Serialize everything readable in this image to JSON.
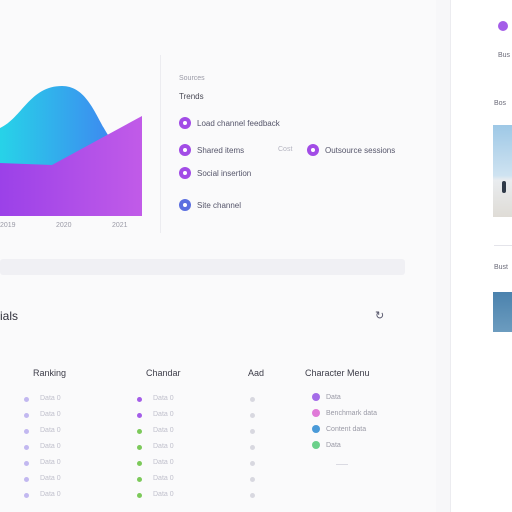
{
  "chart": {
    "tick_labels": [
      "2019",
      "2020",
      "2021"
    ]
  },
  "legend": {
    "kicker": "Sources",
    "title": "Trends",
    "items": [
      {
        "label": "Load channel feedback",
        "color": "#a24ce6"
      },
      {
        "label": "Shared items",
        "color": "#a24ce6"
      },
      {
        "label": "Social insertion",
        "color": "#a24ce6"
      },
      {
        "label": "Outsource sessions",
        "color": "#a24ce6"
      },
      {
        "label": "Site channel",
        "color": "#5b6fe0"
      }
    ],
    "mid_text": "Cost"
  },
  "progress": {
    "value": 0
  },
  "section": {
    "title": "ials"
  },
  "columns": {
    "ranking": "Ranking",
    "channel": "Chandar",
    "ad": "Aad",
    "channels": "Character Menu"
  },
  "rows": [
    {
      "a_color": "#c2b8f0",
      "a": "Data 0",
      "b_color": "#a45de8",
      "b": "Data 0",
      "c_color": "#d8d8e0"
    },
    {
      "a_color": "#c2b8f0",
      "a": "Data 0",
      "b_color": "#a45de8",
      "b": "Data 0",
      "c_color": "#d8d8e0"
    },
    {
      "a_color": "#c2b8f0",
      "a": "Data 0",
      "b_color": "#7cc95a",
      "b": "Data 0",
      "c_color": "#d8d8e0"
    },
    {
      "a_color": "#c2b8f0",
      "a": "Data 0",
      "b_color": "#7cc95a",
      "b": "Data 0",
      "c_color": "#d8d8e0"
    },
    {
      "a_color": "#c2b8f0",
      "a": "Data 0",
      "b_color": "#7cc95a",
      "b": "Data 0",
      "c_color": "#d8d8e0"
    },
    {
      "a_color": "#c2b8f0",
      "a": "Data 0",
      "b_color": "#7cc95a",
      "b": "Data 0",
      "c_color": "#d8d8e0"
    },
    {
      "a_color": "#c2b8f0",
      "a": "Data 0",
      "b_color": "#7cc95a",
      "b": "Data 0",
      "c_color": "#d8d8e0"
    }
  ],
  "channels_legend": [
    {
      "label": "Data",
      "color": "#a46ce8"
    },
    {
      "label": "Benchmark data",
      "color": "#e07ad8"
    },
    {
      "label": "Content data",
      "color": "#4a9ad8"
    },
    {
      "label": "Data",
      "color": "#6bd08a"
    }
  ],
  "side": {
    "label_top": "Bus",
    "label_mid": "Bos",
    "label_low": "Bust"
  }
}
